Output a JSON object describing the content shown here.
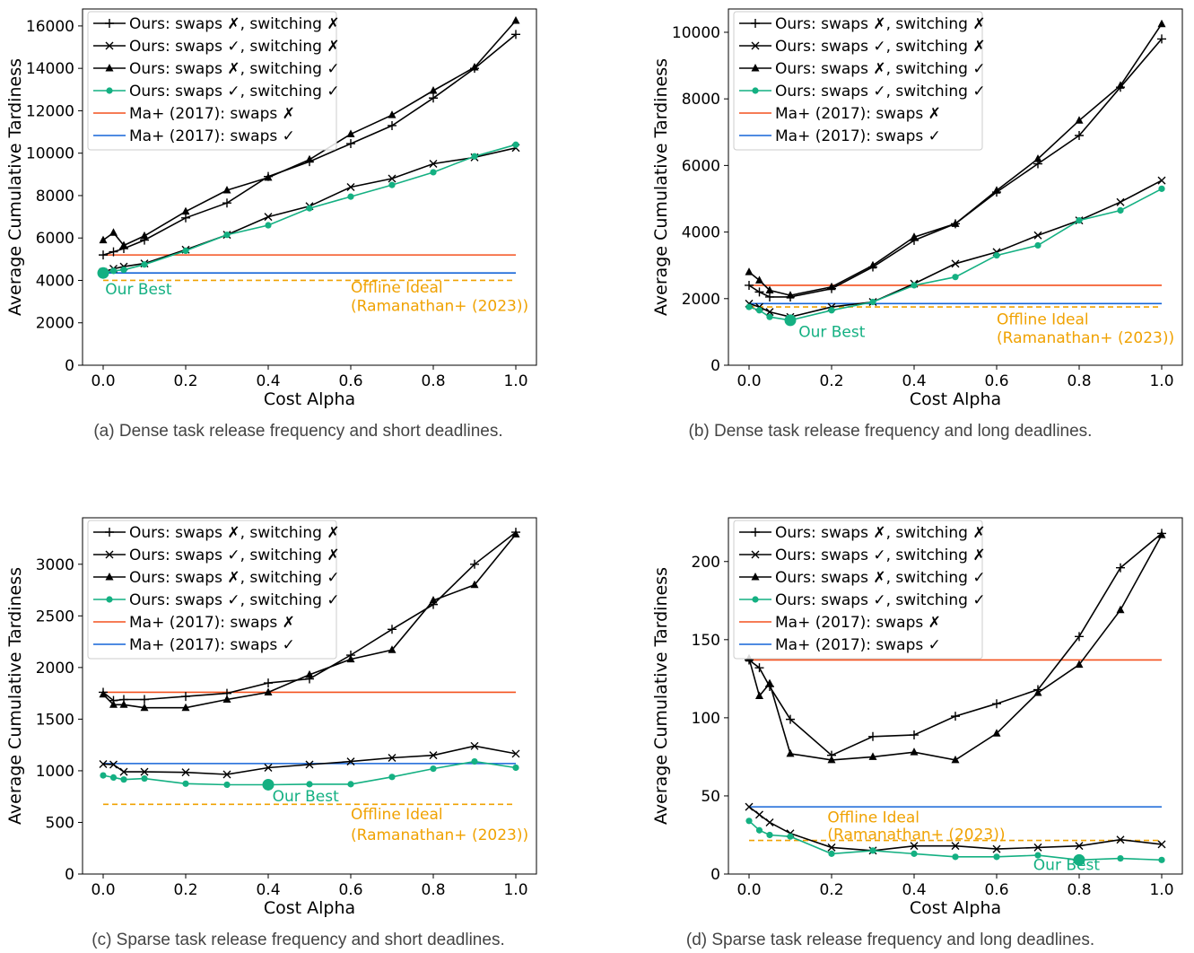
{
  "colors": {
    "black": "#000000",
    "green": "#14b082",
    "orange": "#f4511e",
    "blue": "#1565d8",
    "gold": "#f0a202"
  },
  "legend": [
    "Ours: swaps ✗, switching ✗",
    "Ours: swaps ✓, switching ✗",
    "Ours: swaps ✗, switching ✓",
    "Ours: swaps ✓, switching ✓",
    "Ma+ (2017): swaps ✗",
    "Ma+ (2017): swaps ✓"
  ],
  "chart_data": [
    {
      "type": "line",
      "id": "a",
      "caption": "(a) Dense task release frequency and short deadlines.",
      "xlabel": "Cost Alpha",
      "ylabel": "Average Cumulative Tardiness",
      "xlim": [
        -0.05,
        1.05
      ],
      "ylim": [
        0,
        16800
      ],
      "yticks": [
        0,
        2000,
        4000,
        6000,
        8000,
        10000,
        12000,
        14000,
        16000
      ],
      "xticks": [
        0.0,
        0.2,
        0.4,
        0.6,
        0.8,
        1.0
      ],
      "series": [
        {
          "name": "Ours: swaps ✗, switching ✗",
          "marker": "plus",
          "color": "black",
          "x": [
            0,
            0.025,
            0.05,
            0.1,
            0.2,
            0.3,
            0.4,
            0.5,
            0.6,
            0.7,
            0.8,
            0.9,
            1.0
          ],
          "y": [
            5200,
            5350,
            5500,
            5900,
            6950,
            7650,
            8900,
            9600,
            10450,
            11300,
            12600,
            14000,
            15600
          ]
        },
        {
          "name": "Ours: swaps ✓, switching ✗",
          "marker": "x",
          "color": "black",
          "x": [
            0,
            0.025,
            0.05,
            0.1,
            0.2,
            0.3,
            0.4,
            0.5,
            0.6,
            0.7,
            0.8,
            0.9,
            1.0
          ],
          "y": [
            4400,
            4550,
            4650,
            4800,
            5450,
            6150,
            7000,
            7500,
            8400,
            8800,
            9500,
            9800,
            10250
          ]
        },
        {
          "name": "Ours: swaps ✗, switching ✓",
          "marker": "triangle",
          "color": "black",
          "x": [
            0,
            0.025,
            0.05,
            0.1,
            0.2,
            0.3,
            0.4,
            0.5,
            0.6,
            0.7,
            0.8,
            0.9,
            1.0
          ],
          "y": [
            5900,
            6250,
            5650,
            6100,
            7250,
            8250,
            8850,
            9700,
            10900,
            11800,
            12950,
            14050,
            16250
          ]
        },
        {
          "name": "Ours: swaps ✓, switching ✓",
          "marker": "circle",
          "color": "green",
          "x": [
            0,
            0.025,
            0.05,
            0.1,
            0.2,
            0.3,
            0.4,
            0.5,
            0.6,
            0.7,
            0.8,
            0.9,
            1.0
          ],
          "y": [
            4350,
            4450,
            4500,
            4750,
            5400,
            6150,
            6600,
            7400,
            7950,
            8500,
            9100,
            9850,
            10400
          ]
        }
      ],
      "hlines": [
        {
          "name": "Ma+ (2017): swaps ✗",
          "y": 5200,
          "color": "orange",
          "dash": false
        },
        {
          "name": "Ma+ (2017): swaps ✓",
          "y": 4350,
          "color": "blue",
          "dash": false
        },
        {
          "name": "Offline Ideal",
          "y": 4000,
          "color": "gold",
          "dash": true
        }
      ],
      "best": {
        "x": 0.0,
        "y": 4350
      },
      "annotations": [
        {
          "text": "Our Best",
          "color": "green",
          "x": 0.005,
          "y": 3350,
          "anchor": "start"
        },
        {
          "text": "Offline Ideal",
          "color": "gold",
          "x": 0.6,
          "y": 3420,
          "anchor": "start"
        },
        {
          "text": "(Ramanathan+ (2023))",
          "color": "gold",
          "x": 0.6,
          "y": 2560,
          "anchor": "start"
        }
      ]
    },
    {
      "type": "line",
      "id": "b",
      "caption": "(b) Dense task release frequency and long deadlines.",
      "xlabel": "Cost Alpha",
      "ylabel": "Average Cumulative Tardiness",
      "xlim": [
        -0.05,
        1.05
      ],
      "ylim": [
        0,
        10700
      ],
      "yticks": [
        0,
        2000,
        4000,
        6000,
        8000,
        10000
      ],
      "xticks": [
        0.0,
        0.2,
        0.4,
        0.6,
        0.8,
        1.0
      ],
      "series": [
        {
          "name": "Ours: swaps ✗, switching ✗",
          "marker": "plus",
          "color": "black",
          "x": [
            0,
            0.025,
            0.05,
            0.1,
            0.2,
            0.3,
            0.4,
            0.5,
            0.6,
            0.7,
            0.8,
            0.9,
            1.0
          ],
          "y": [
            2400,
            2200,
            2050,
            2050,
            2300,
            2950,
            3750,
            4250,
            5200,
            6050,
            6900,
            8350,
            9800
          ]
        },
        {
          "name": "Ours: swaps ✓, switching ✗",
          "marker": "x",
          "color": "black",
          "x": [
            0,
            0.025,
            0.05,
            0.1,
            0.2,
            0.3,
            0.4,
            0.5,
            0.6,
            0.7,
            0.8,
            0.9,
            1.0
          ],
          "y": [
            1850,
            1750,
            1600,
            1450,
            1750,
            1900,
            2450,
            3050,
            3400,
            3900,
            4350,
            4900,
            5550
          ]
        },
        {
          "name": "Ours: swaps ✗, switching ✓",
          "marker": "triangle",
          "color": "black",
          "x": [
            0,
            0.025,
            0.05,
            0.1,
            0.2,
            0.3,
            0.4,
            0.5,
            0.6,
            0.7,
            0.8,
            0.9,
            1.0
          ],
          "y": [
            2800,
            2550,
            2250,
            2100,
            2350,
            3000,
            3850,
            4250,
            5250,
            6200,
            7350,
            8400,
            10250
          ]
        },
        {
          "name": "Ours: swaps ✓, switching ✓",
          "marker": "circle",
          "color": "green",
          "x": [
            0,
            0.025,
            0.05,
            0.1,
            0.2,
            0.3,
            0.4,
            0.5,
            0.6,
            0.7,
            0.8,
            0.9,
            1.0
          ],
          "y": [
            1750,
            1650,
            1450,
            1350,
            1650,
            1900,
            2400,
            2650,
            3300,
            3600,
            4350,
            4650,
            5300
          ]
        }
      ],
      "hlines": [
        {
          "name": "Ma+ (2017): swaps ✗",
          "y": 2400,
          "color": "orange",
          "dash": false
        },
        {
          "name": "Ma+ (2017): swaps ✓",
          "y": 1850,
          "color": "blue",
          "dash": false
        },
        {
          "name": "Offline Ideal",
          "y": 1750,
          "color": "gold",
          "dash": true
        }
      ],
      "best": {
        "x": 0.1,
        "y": 1350
      },
      "annotations": [
        {
          "text": "Our Best",
          "color": "green",
          "x": 0.12,
          "y": 850,
          "anchor": "start"
        },
        {
          "text": "Offline Ideal",
          "color": "gold",
          "x": 0.6,
          "y": 1230,
          "anchor": "start"
        },
        {
          "text": "(Ramanathan+ (2023))",
          "color": "gold",
          "x": 0.6,
          "y": 680,
          "anchor": "start"
        }
      ]
    },
    {
      "type": "line",
      "id": "c",
      "caption": "(c) Sparse task release frequency and short deadlines.",
      "xlabel": "Cost Alpha",
      "ylabel": "Average Cumulative Tardiness",
      "xlim": [
        -0.05,
        1.05
      ],
      "ylim": [
        0,
        3450
      ],
      "yticks": [
        0,
        500,
        1000,
        1500,
        2000,
        2500,
        3000
      ],
      "xticks": [
        0.0,
        0.2,
        0.4,
        0.6,
        0.8,
        1.0
      ],
      "series": [
        {
          "name": "Ours: swaps ✗, switching ✗",
          "marker": "plus",
          "color": "black",
          "x": [
            0,
            0.025,
            0.05,
            0.1,
            0.2,
            0.3,
            0.4,
            0.5,
            0.6,
            0.7,
            0.8,
            0.9,
            1.0
          ],
          "y": [
            1760,
            1680,
            1690,
            1690,
            1720,
            1750,
            1850,
            1890,
            2120,
            2370,
            2610,
            3000,
            3310
          ]
        },
        {
          "name": "Ours: swaps ✓, switching ✗",
          "marker": "x",
          "color": "black",
          "x": [
            0,
            0.025,
            0.05,
            0.1,
            0.2,
            0.3,
            0.4,
            0.5,
            0.6,
            0.7,
            0.8,
            0.9,
            1.0
          ],
          "y": [
            1065,
            1060,
            990,
            990,
            985,
            965,
            1030,
            1060,
            1090,
            1125,
            1150,
            1240,
            1165
          ]
        },
        {
          "name": "Ours: swaps ✗, switching ✓",
          "marker": "triangle",
          "color": "black",
          "x": [
            0,
            0.025,
            0.05,
            0.1,
            0.2,
            0.3,
            0.4,
            0.5,
            0.6,
            0.7,
            0.8,
            0.9,
            1.0
          ],
          "y": [
            1740,
            1640,
            1640,
            1610,
            1610,
            1690,
            1760,
            1930,
            2080,
            2170,
            2650,
            2800,
            3290
          ]
        },
        {
          "name": "Ours: swaps ✓, switching ✓",
          "marker": "circle",
          "color": "green",
          "x": [
            0,
            0.025,
            0.05,
            0.1,
            0.2,
            0.3,
            0.4,
            0.5,
            0.6,
            0.7,
            0.8,
            0.9,
            1.0
          ],
          "y": [
            955,
            935,
            915,
            925,
            875,
            865,
            865,
            870,
            870,
            940,
            1020,
            1090,
            1030
          ]
        }
      ],
      "hlines": [
        {
          "name": "Ma+ (2017): swaps ✗",
          "y": 1760,
          "color": "orange",
          "dash": false
        },
        {
          "name": "Ma+ (2017): swaps ✓",
          "y": 1070,
          "color": "blue",
          "dash": false
        },
        {
          "name": "Offline Ideal",
          "y": 675,
          "color": "gold",
          "dash": true
        }
      ],
      "best": {
        "x": 0.4,
        "y": 865
      },
      "annotations": [
        {
          "text": "Our Best",
          "color": "green",
          "x": 0.41,
          "y": 705,
          "anchor": "start"
        },
        {
          "text": "Offline Ideal",
          "color": "gold",
          "x": 0.6,
          "y": 530,
          "anchor": "start"
        },
        {
          "text": "(Ramanathan+ (2023))",
          "color": "gold",
          "x": 0.6,
          "y": 330,
          "anchor": "start"
        }
      ]
    },
    {
      "type": "line",
      "id": "d",
      "caption": "(d) Sparse task release frequency and long deadlines.",
      "xlabel": "Cost Alpha",
      "ylabel": "Average Cumulative Tardiness",
      "xlim": [
        -0.05,
        1.05
      ],
      "ylim": [
        0,
        228
      ],
      "yticks": [
        0,
        50,
        100,
        150,
        200
      ],
      "xticks": [
        0.0,
        0.2,
        0.4,
        0.6,
        0.8,
        1.0
      ],
      "series": [
        {
          "name": "Ours: swaps ✗, switching ✗",
          "marker": "plus",
          "color": "black",
          "x": [
            0,
            0.025,
            0.05,
            0.1,
            0.2,
            0.3,
            0.4,
            0.5,
            0.6,
            0.7,
            0.8,
            0.9,
            1.0
          ],
          "y": [
            137,
            132,
            120,
            99,
            76,
            88,
            89,
            101,
            109,
            118,
            152,
            196,
            218
          ]
        },
        {
          "name": "Ours: swaps ✓, switching ✗",
          "marker": "x",
          "color": "black",
          "x": [
            0,
            0.025,
            0.05,
            0.1,
            0.2,
            0.3,
            0.4,
            0.5,
            0.6,
            0.7,
            0.8,
            0.9,
            1.0
          ],
          "y": [
            43,
            38,
            33,
            26,
            17,
            15,
            18,
            18,
            16,
            17,
            18,
            22,
            19
          ]
        },
        {
          "name": "Ours: swaps ✗, switching ✓",
          "marker": "triangle",
          "color": "black",
          "x": [
            0,
            0.025,
            0.05,
            0.1,
            0.2,
            0.3,
            0.4,
            0.5,
            0.6,
            0.7,
            0.8,
            0.9,
            1.0
          ],
          "y": [
            138,
            114,
            122,
            77,
            73,
            75,
            78,
            73,
            90,
            116,
            134,
            169,
            217
          ]
        },
        {
          "name": "Ours: swaps ✓, switching ✓",
          "marker": "circle",
          "color": "green",
          "x": [
            0,
            0.025,
            0.05,
            0.1,
            0.2,
            0.3,
            0.4,
            0.5,
            0.6,
            0.7,
            0.8,
            0.9,
            1.0
          ],
          "y": [
            34,
            28,
            25,
            24,
            13,
            15,
            13,
            11,
            11,
            12,
            9,
            10,
            9
          ]
        }
      ],
      "hlines": [
        {
          "name": "Ma+ (2017): swaps ✗",
          "y": 137,
          "color": "orange",
          "dash": false
        },
        {
          "name": "Ma+ (2017): swaps ✓",
          "y": 43,
          "color": "blue",
          "dash": false
        },
        {
          "name": "Offline Ideal",
          "y": 21.5,
          "color": "gold",
          "dash": true
        }
      ],
      "best": {
        "x": 0.8,
        "y": 9
      },
      "annotations": [
        {
          "text": "Our Best",
          "color": "green",
          "x": 0.85,
          "y": 2.5,
          "anchor": "end"
        },
        {
          "text": "Offline Ideal",
          "color": "gold",
          "x": 0.19,
          "y": 33,
          "anchor": "start"
        },
        {
          "text": "(Ramanathan+ (2023))",
          "color": "gold",
          "x": 0.19,
          "y": 22,
          "anchor": "start"
        }
      ]
    }
  ]
}
